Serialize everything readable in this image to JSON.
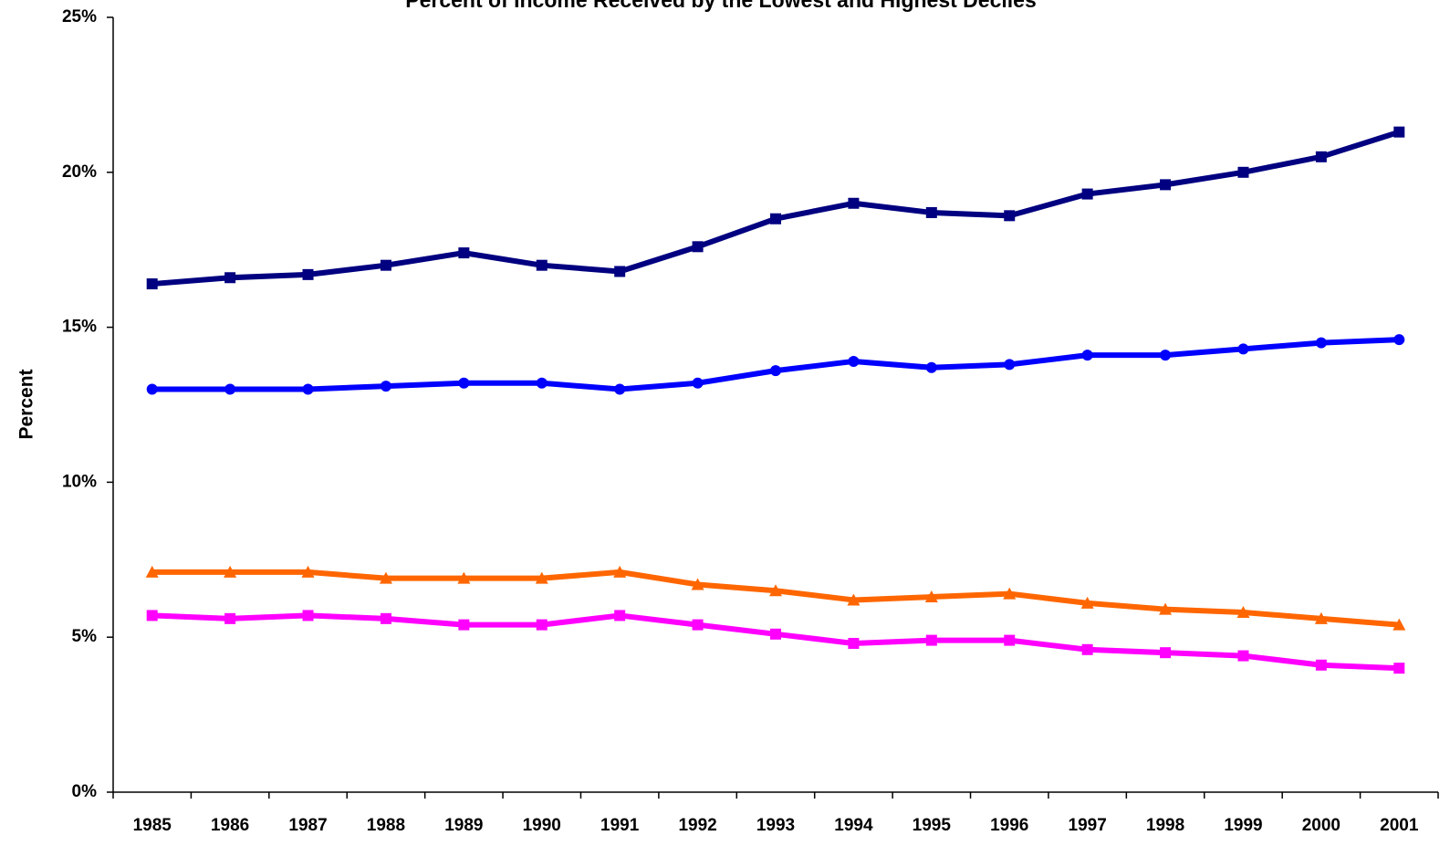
{
  "chart_data": {
    "type": "line",
    "title": "Percent of Income Received by the Lowest and Highest Deciles",
    "y_label": "Percent",
    "categories": [
      "1985",
      "1986",
      "1987",
      "1988",
      "1989",
      "1990",
      "1991",
      "1992",
      "1993",
      "1994",
      "1995",
      "1996",
      "1997",
      "1998",
      "1999",
      "2000",
      "2001"
    ],
    "series": [
      {
        "color": "#000080",
        "marker": "square",
        "values": [
          16.4,
          16.6,
          16.7,
          17.0,
          17.4,
          17.0,
          16.8,
          17.6,
          18.5,
          19.0,
          18.7,
          18.6,
          19.3,
          19.6,
          20.0,
          20.5,
          21.3
        ]
      },
      {
        "color": "#0000ff",
        "marker": "circle",
        "values": [
          13.0,
          13.0,
          13.0,
          13.1,
          13.2,
          13.2,
          13.0,
          13.2,
          13.6,
          13.9,
          13.7,
          13.8,
          14.1,
          14.1,
          14.3,
          14.5,
          14.6
        ]
      },
      {
        "color": "#ff6600",
        "marker": "triangle",
        "values": [
          7.1,
          7.1,
          7.1,
          6.9,
          6.9,
          6.9,
          7.1,
          6.7,
          6.5,
          6.2,
          6.3,
          6.4,
          6.1,
          5.9,
          5.8,
          5.6,
          5.4
        ]
      },
      {
        "color": "#ff00ff",
        "marker": "square",
        "values": [
          5.7,
          5.6,
          5.7,
          5.6,
          5.4,
          5.4,
          5.7,
          5.4,
          5.1,
          4.8,
          4.9,
          4.9,
          4.6,
          4.5,
          4.4,
          4.1,
          4.0
        ]
      }
    ],
    "ylim": [
      0,
      25
    ],
    "yticks": [
      {
        "value": 0,
        "label": "0%"
      },
      {
        "value": 5,
        "label": "5%"
      },
      {
        "value": 10,
        "label": "10%"
      },
      {
        "value": 15,
        "label": "15%"
      },
      {
        "value": 20,
        "label": "20%"
      },
      {
        "value": 25,
        "label": "25%"
      }
    ],
    "grid": false
  }
}
